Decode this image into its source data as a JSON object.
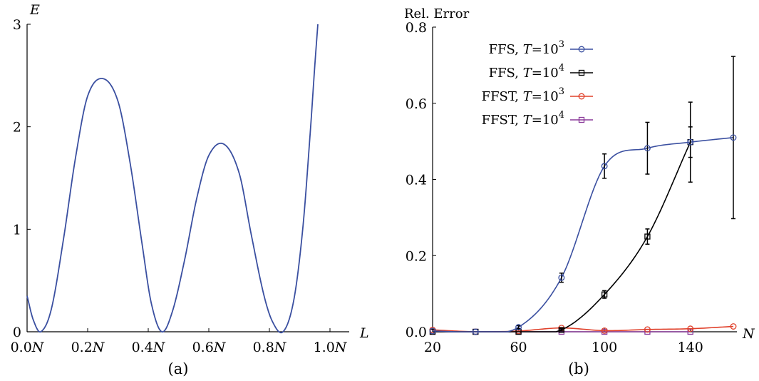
{
  "chart_data": [
    {
      "type": "line",
      "panel_label": "(a)",
      "xlabel": "L",
      "ylabel": "E",
      "xlim": [
        0,
        1
      ],
      "ylim": [
        0,
        3
      ],
      "x_ticks": [
        0,
        0.2,
        0.4,
        0.6,
        0.8,
        1.0
      ],
      "x_tick_labels": [
        "0.0N",
        "0.2N",
        "0.4N",
        "0.6N",
        "0.8N",
        "1.0N"
      ],
      "y_ticks": [
        0,
        1,
        2,
        3
      ],
      "y_tick_labels": [
        "0",
        "1",
        "2",
        "3"
      ],
      "series": [
        {
          "color": "#3a4fa0",
          "x": [
            0.0,
            0.02,
            0.045,
            0.08,
            0.12,
            0.16,
            0.2,
            0.25,
            0.3,
            0.34,
            0.38,
            0.41,
            0.445,
            0.48,
            0.52,
            0.56,
            0.6,
            0.65,
            0.7,
            0.74,
            0.78,
            0.81,
            0.845,
            0.88,
            0.91,
            0.935,
            0.95,
            0.96
          ],
          "y": [
            0.35,
            0.12,
            0.0,
            0.22,
            0.9,
            1.7,
            2.3,
            2.47,
            2.25,
            1.65,
            0.85,
            0.28,
            0.0,
            0.2,
            0.7,
            1.3,
            1.72,
            1.83,
            1.55,
            0.95,
            0.38,
            0.1,
            0.0,
            0.3,
            1.0,
            1.95,
            2.6,
            3.0
          ]
        }
      ]
    },
    {
      "type": "line",
      "panel_label": "(b)",
      "title": "Rel. Error",
      "xlabel": "N",
      "ylabel": "",
      "xlim": [
        20,
        160
      ],
      "ylim": [
        0,
        0.8
      ],
      "x_ticks": [
        20,
        60,
        100,
        140
      ],
      "x_tick_labels": [
        "20",
        "60",
        "100",
        "140"
      ],
      "y_ticks": [
        0,
        0.2,
        0.4,
        0.6,
        0.8
      ],
      "y_tick_labels": [
        "0.0",
        "0.2",
        "0.4",
        "0.6",
        "0.8"
      ],
      "legend_position": "top-left",
      "series": [
        {
          "legend_prefix": "FFS,",
          "legend_var": "T",
          "legend_mid": "=10",
          "legend_exp": "3",
          "marker": "circle",
          "color": "#3a4fa0",
          "x": [
            20,
            40,
            60,
            80,
            100,
            120,
            140,
            160
          ],
          "y": [
            0.002,
            0.0,
            0.012,
            0.142,
            0.435,
            0.482,
            0.498,
            0.51
          ],
          "err": [
            0,
            0,
            0.004,
            0.012,
            0.032,
            0.068,
            0.105,
            0.213
          ]
        },
        {
          "legend_prefix": "FFS,",
          "legend_var": "T",
          "legend_mid": "=10",
          "legend_exp": "4",
          "marker": "square",
          "color": "#000000",
          "x": [
            20,
            40,
            60,
            80,
            100,
            120,
            140
          ],
          "y": [
            0.0,
            0.0,
            0.0,
            0.005,
            0.098,
            0.25,
            0.498
          ],
          "err": [
            0,
            0,
            0,
            0.003,
            0.01,
            0.02,
            0.04
          ]
        },
        {
          "legend_prefix": "FFST,",
          "legend_var": "T",
          "legend_mid": "=10",
          "legend_exp": "3",
          "marker": "circle",
          "color": "#e0402a",
          "x": [
            20,
            40,
            60,
            80,
            100,
            120,
            140,
            160
          ],
          "y": [
            0.005,
            0.0,
            0.002,
            0.01,
            0.003,
            0.006,
            0.008,
            0.014
          ],
          "err": [
            0,
            0,
            0,
            0,
            0,
            0,
            0,
            0
          ]
        },
        {
          "legend_prefix": "FFST,",
          "legend_var": "T",
          "legend_mid": "=10",
          "legend_exp": "4",
          "marker": "square",
          "color": "#8a3a9a",
          "x": [
            20,
            40,
            60,
            80,
            100,
            120,
            140
          ],
          "y": [
            0.0,
            0.0,
            0.0,
            0.0,
            0.0,
            0.0,
            0.0
          ],
          "err": [
            0,
            0,
            0,
            0,
            0,
            0,
            0
          ]
        }
      ]
    }
  ]
}
